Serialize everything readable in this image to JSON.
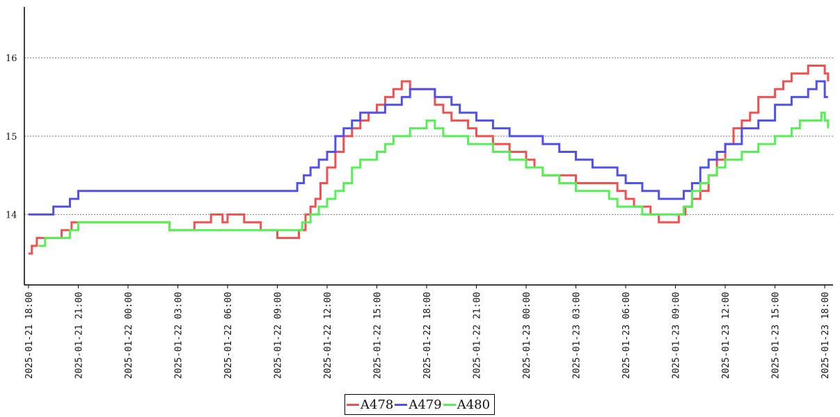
{
  "chart_data": {
    "type": "line",
    "title": "",
    "xlabel": "",
    "ylabel": "",
    "x": [
      "2025-01-21 18:00",
      "2025-01-21 21:00",
      "2025-01-22 00:00",
      "2025-01-22 03:00",
      "2025-01-22 06:00",
      "2025-01-22 09:00",
      "2025-01-22 12:00",
      "2025-01-22 15:00",
      "2025-01-22 18:00",
      "2025-01-22 21:00",
      "2025-01-23 00:00",
      "2025-01-23 03:00",
      "2025-01-23 06:00",
      "2025-01-23 09:00",
      "2025-01-23 12:00",
      "2025-01-23 15:00",
      "2025-01-23 18:00"
    ],
    "xlim_hours": [
      -0.25,
      48.5
    ],
    "ylim": [
      13.1,
      16.65
    ],
    "yticks": [
      "14",
      "15",
      "16"
    ],
    "grid": "horizontal-dotted",
    "legend": "bottom-center",
    "series": [
      {
        "name": "A478",
        "color": "#f05050",
        "points": [
          [
            0,
            13.5
          ],
          [
            0.2,
            13.6
          ],
          [
            0.5,
            13.7
          ],
          [
            2,
            13.8
          ],
          [
            2.6,
            13.9
          ],
          [
            5,
            13.9
          ],
          [
            8.5,
            13.8
          ],
          [
            10,
            13.9
          ],
          [
            11,
            14.0
          ],
          [
            11.7,
            13.9
          ],
          [
            12,
            14.0
          ],
          [
            13,
            13.9
          ],
          [
            14,
            13.8
          ],
          [
            15,
            13.7
          ],
          [
            16,
            13.7
          ],
          [
            16.3,
            13.8
          ],
          [
            16.7,
            14.0
          ],
          [
            17,
            14.1
          ],
          [
            17.3,
            14.2
          ],
          [
            17.6,
            14.4
          ],
          [
            18,
            14.6
          ],
          [
            18.5,
            14.8
          ],
          [
            19,
            15.0
          ],
          [
            19.5,
            15.1
          ],
          [
            20,
            15.2
          ],
          [
            20.5,
            15.3
          ],
          [
            21,
            15.4
          ],
          [
            21.5,
            15.5
          ],
          [
            22,
            15.6
          ],
          [
            22.5,
            15.7
          ],
          [
            23,
            15.6
          ],
          [
            24,
            15.6
          ],
          [
            24.5,
            15.4
          ],
          [
            25,
            15.3
          ],
          [
            25.5,
            15.2
          ],
          [
            26.5,
            15.1
          ],
          [
            27,
            15.0
          ],
          [
            28,
            14.9
          ],
          [
            29,
            14.8
          ],
          [
            30,
            14.7
          ],
          [
            30.5,
            14.6
          ],
          [
            31,
            14.5
          ],
          [
            32,
            14.5
          ],
          [
            33,
            14.4
          ],
          [
            35,
            14.4
          ],
          [
            35.5,
            14.3
          ],
          [
            36,
            14.2
          ],
          [
            36.5,
            14.1
          ],
          [
            37.5,
            14.0
          ],
          [
            38,
            13.9
          ],
          [
            39,
            13.9
          ],
          [
            39.2,
            14.0
          ],
          [
            39.6,
            14.1
          ],
          [
            40,
            14.2
          ],
          [
            40.5,
            14.3
          ],
          [
            41,
            14.5
          ],
          [
            41.5,
            14.7
          ],
          [
            42,
            14.9
          ],
          [
            42.5,
            15.1
          ],
          [
            43,
            15.2
          ],
          [
            43.5,
            15.3
          ],
          [
            44,
            15.5
          ],
          [
            45,
            15.6
          ],
          [
            45.5,
            15.7
          ],
          [
            46,
            15.8
          ],
          [
            46.5,
            15.8
          ],
          [
            47,
            15.9
          ],
          [
            48,
            15.8
          ],
          [
            48.2,
            15.7
          ]
        ]
      },
      {
        "name": "A479",
        "color": "#5050ea",
        "points": [
          [
            0,
            14.0
          ],
          [
            0.5,
            14.0
          ],
          [
            1,
            14.0
          ],
          [
            1.5,
            14.1
          ],
          [
            2,
            14.1
          ],
          [
            2.5,
            14.2
          ],
          [
            3,
            14.3
          ],
          [
            5,
            14.3
          ],
          [
            7,
            14.3
          ],
          [
            9,
            14.3
          ],
          [
            11,
            14.3
          ],
          [
            14,
            14.3
          ],
          [
            15,
            14.3
          ],
          [
            15.5,
            14.3
          ],
          [
            16,
            14.3
          ],
          [
            16.2,
            14.4
          ],
          [
            16.6,
            14.5
          ],
          [
            17,
            14.6
          ],
          [
            17.5,
            14.7
          ],
          [
            18,
            14.8
          ],
          [
            18.5,
            15.0
          ],
          [
            19,
            15.1
          ],
          [
            19.5,
            15.2
          ],
          [
            20,
            15.3
          ],
          [
            21,
            15.3
          ],
          [
            21.5,
            15.4
          ],
          [
            22.5,
            15.5
          ],
          [
            23,
            15.6
          ],
          [
            24,
            15.6
          ],
          [
            24.5,
            15.5
          ],
          [
            25.5,
            15.4
          ],
          [
            26,
            15.3
          ],
          [
            27,
            15.2
          ],
          [
            28,
            15.1
          ],
          [
            29,
            15.0
          ],
          [
            30,
            15.0
          ],
          [
            31,
            14.9
          ],
          [
            32,
            14.8
          ],
          [
            33,
            14.7
          ],
          [
            34,
            14.6
          ],
          [
            35,
            14.6
          ],
          [
            35.5,
            14.5
          ],
          [
            36,
            14.4
          ],
          [
            37,
            14.3
          ],
          [
            38,
            14.2
          ],
          [
            39,
            14.2
          ],
          [
            39.5,
            14.3
          ],
          [
            40,
            14.4
          ],
          [
            40.5,
            14.6
          ],
          [
            41,
            14.7
          ],
          [
            41.5,
            14.8
          ],
          [
            42,
            14.9
          ],
          [
            43,
            15.1
          ],
          [
            44,
            15.2
          ],
          [
            45,
            15.4
          ],
          [
            46,
            15.5
          ],
          [
            47,
            15.6
          ],
          [
            47.5,
            15.7
          ],
          [
            48,
            15.5
          ],
          [
            48.2,
            15.5
          ]
        ]
      },
      {
        "name": "A480",
        "color": "#55f055",
        "points": [
          [
            0.6,
            13.6
          ],
          [
            1,
            13.7
          ],
          [
            2.5,
            13.8
          ],
          [
            3,
            13.9
          ],
          [
            8,
            13.9
          ],
          [
            8.5,
            13.8
          ],
          [
            10,
            13.8
          ],
          [
            11,
            13.8
          ],
          [
            13,
            13.8
          ],
          [
            15,
            13.8
          ],
          [
            16,
            13.8
          ],
          [
            16.5,
            13.9
          ],
          [
            17,
            14.0
          ],
          [
            17.5,
            14.1
          ],
          [
            18,
            14.2
          ],
          [
            18.5,
            14.3
          ],
          [
            19,
            14.4
          ],
          [
            19.5,
            14.6
          ],
          [
            20,
            14.7
          ],
          [
            21,
            14.8
          ],
          [
            21.5,
            14.9
          ],
          [
            22,
            15.0
          ],
          [
            23,
            15.1
          ],
          [
            24,
            15.2
          ],
          [
            24.5,
            15.1
          ],
          [
            25,
            15.0
          ],
          [
            26,
            15.0
          ],
          [
            26.5,
            14.9
          ],
          [
            28,
            14.8
          ],
          [
            29,
            14.7
          ],
          [
            30,
            14.6
          ],
          [
            31,
            14.5
          ],
          [
            32,
            14.4
          ],
          [
            33,
            14.3
          ],
          [
            34,
            14.3
          ],
          [
            35,
            14.2
          ],
          [
            35.5,
            14.1
          ],
          [
            36.5,
            14.1
          ],
          [
            37,
            14.0
          ],
          [
            38,
            14.0
          ],
          [
            39,
            14.0
          ],
          [
            39.5,
            14.1
          ],
          [
            40,
            14.3
          ],
          [
            40.5,
            14.4
          ],
          [
            41,
            14.5
          ],
          [
            41.5,
            14.6
          ],
          [
            42,
            14.7
          ],
          [
            43,
            14.8
          ],
          [
            44,
            14.9
          ],
          [
            45,
            15.0
          ],
          [
            46,
            15.1
          ],
          [
            46.5,
            15.2
          ],
          [
            47.5,
            15.2
          ],
          [
            47.8,
            15.3
          ],
          [
            48,
            15.2
          ],
          [
            48.2,
            15.1
          ]
        ]
      }
    ]
  }
}
